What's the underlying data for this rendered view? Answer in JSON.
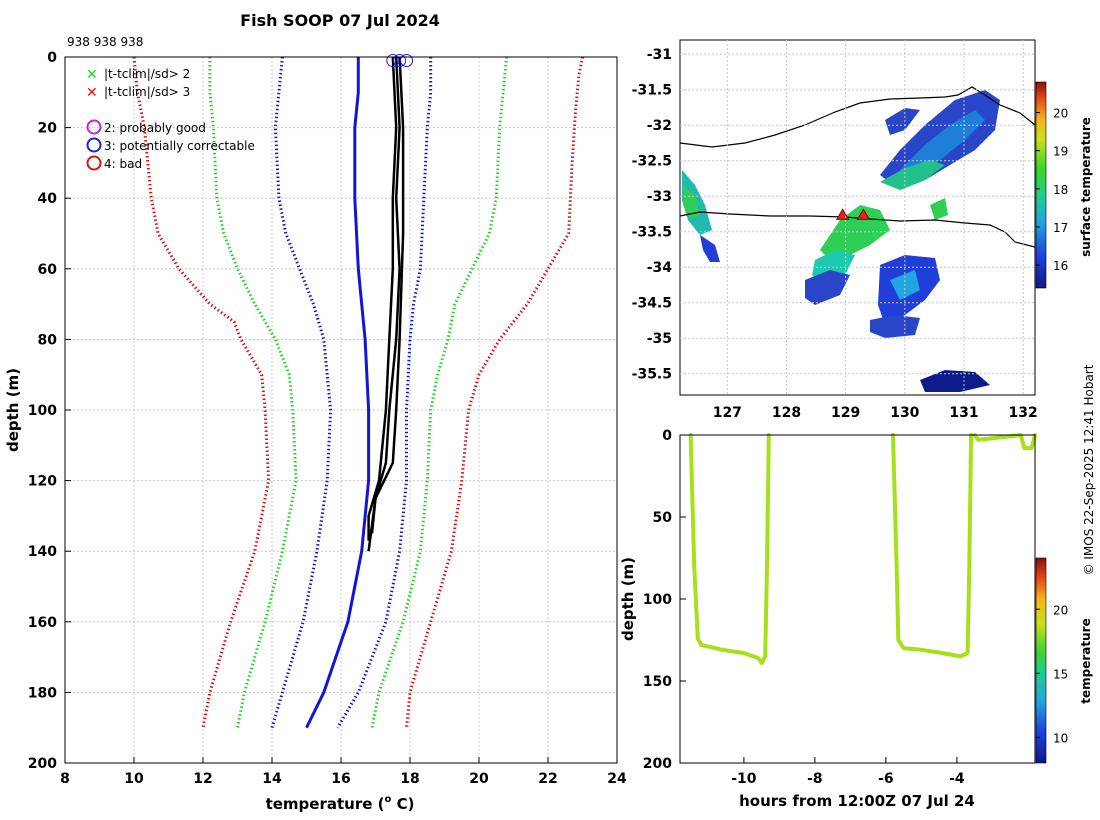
{
  "title": "Fish SOOP 07 Jul 2024",
  "profile_ids": "938 938 938",
  "credit": "© IMOS 22-Sep-2025 12:41 Hobart",
  "colors": {
    "sd2": "#1fd61f",
    "sd3": "#dd1111",
    "mean": "#1414d8",
    "obs": "#000000",
    "flag2": "#d020d0",
    "flag3": "#1f1fd8",
    "flag4": "#e01010"
  },
  "legend": {
    "sd2": "|t-tclim|/sd> 2",
    "sd3": "|t-tclim|/sd> 3",
    "flag2": "2: probably good",
    "flag3": "3: potentially correctable",
    "flag4": "4: bad"
  },
  "chart_data": [
    {
      "type": "line",
      "name": "profile",
      "xlabel": "temperature (o C)",
      "ylabel": "depth (m)",
      "xlim": [
        8,
        24
      ],
      "ylim": [
        0,
        200
      ],
      "y_reversed": true,
      "xticks": [
        8,
        10,
        12,
        14,
        16,
        18,
        20,
        22,
        24
      ],
      "yticks": [
        0,
        20,
        40,
        60,
        80,
        100,
        120,
        140,
        160,
        180,
        200
      ],
      "grid": true,
      "series": [
        {
          "name": "clim-3sd-low",
          "style": "dotted",
          "color": "sd3",
          "points": [
            [
              10.0,
              0
            ],
            [
              10.1,
              10
            ],
            [
              10.3,
              20
            ],
            [
              10.4,
              30
            ],
            [
              10.5,
              40
            ],
            [
              10.7,
              50
            ],
            [
              11.3,
              60
            ],
            [
              12.2,
              70
            ],
            [
              12.9,
              75
            ],
            [
              13.1,
              80
            ],
            [
              13.4,
              85
            ],
            [
              13.7,
              90
            ],
            [
              13.8,
              100
            ],
            [
              13.9,
              120
            ],
            [
              13.5,
              140
            ],
            [
              12.8,
              160
            ],
            [
              12.2,
              180
            ],
            [
              12.0,
              190
            ]
          ]
        },
        {
          "name": "clim-2sd-low",
          "style": "dotted",
          "color": "sd2",
          "points": [
            [
              12.2,
              0
            ],
            [
              12.2,
              10
            ],
            [
              12.3,
              20
            ],
            [
              12.4,
              40
            ],
            [
              12.6,
              50
            ],
            [
              13.0,
              60
            ],
            [
              13.5,
              70
            ],
            [
              14.1,
              80
            ],
            [
              14.5,
              90
            ],
            [
              14.6,
              100
            ],
            [
              14.7,
              120
            ],
            [
              14.3,
              140
            ],
            [
              13.8,
              160
            ],
            [
              13.2,
              180
            ],
            [
              13.0,
              190
            ]
          ]
        },
        {
          "name": "clim-mean-low",
          "style": "dotted",
          "color": "mean",
          "points": [
            [
              14.3,
              0
            ],
            [
              14.2,
              10
            ],
            [
              14.1,
              20
            ],
            [
              14.2,
              40
            ],
            [
              14.4,
              50
            ],
            [
              14.8,
              60
            ],
            [
              15.2,
              70
            ],
            [
              15.5,
              80
            ],
            [
              15.6,
              90
            ],
            [
              15.7,
              100
            ],
            [
              15.6,
              120
            ],
            [
              15.3,
              140
            ],
            [
              14.9,
              160
            ],
            [
              14.3,
              180
            ],
            [
              14.0,
              190
            ]
          ]
        },
        {
          "name": "clim-mean",
          "style": "solid",
          "color": "mean",
          "points": [
            [
              16.5,
              0
            ],
            [
              16.5,
              10
            ],
            [
              16.4,
              20
            ],
            [
              16.4,
              40
            ],
            [
              16.5,
              60
            ],
            [
              16.6,
              70
            ],
            [
              16.7,
              80
            ],
            [
              16.8,
              100
            ],
            [
              16.8,
              120
            ],
            [
              16.6,
              140
            ],
            [
              16.2,
              160
            ],
            [
              15.5,
              180
            ],
            [
              15.0,
              190
            ]
          ]
        },
        {
          "name": "clim-mean-high",
          "style": "dotted",
          "color": "mean",
          "points": [
            [
              18.6,
              0
            ],
            [
              18.6,
              10
            ],
            [
              18.5,
              20
            ],
            [
              18.4,
              40
            ],
            [
              18.3,
              60
            ],
            [
              18.1,
              70
            ],
            [
              18.0,
              80
            ],
            [
              17.9,
              100
            ],
            [
              17.9,
              120
            ],
            [
              17.7,
              140
            ],
            [
              17.3,
              160
            ],
            [
              16.5,
              180
            ],
            [
              15.9,
              190
            ]
          ]
        },
        {
          "name": "clim-2sd-high",
          "style": "dotted",
          "color": "sd2",
          "points": [
            [
              20.8,
              0
            ],
            [
              20.7,
              10
            ],
            [
              20.6,
              20
            ],
            [
              20.5,
              40
            ],
            [
              20.3,
              50
            ],
            [
              19.8,
              60
            ],
            [
              19.3,
              70
            ],
            [
              19.1,
              80
            ],
            [
              18.8,
              90
            ],
            [
              18.6,
              100
            ],
            [
              18.5,
              120
            ],
            [
              18.3,
              140
            ],
            [
              17.8,
              160
            ],
            [
              17.1,
              180
            ],
            [
              16.9,
              190
            ]
          ]
        },
        {
          "name": "clim-3sd-high",
          "style": "dotted",
          "color": "sd3",
          "points": [
            [
              23.0,
              0
            ],
            [
              22.9,
              5
            ],
            [
              22.8,
              15
            ],
            [
              22.7,
              30
            ],
            [
              22.6,
              50
            ],
            [
              22.0,
              60
            ],
            [
              21.4,
              70
            ],
            [
              20.6,
              80
            ],
            [
              20.0,
              90
            ],
            [
              19.7,
              100
            ],
            [
              19.5,
              120
            ],
            [
              19.2,
              140
            ],
            [
              18.6,
              160
            ],
            [
              18.0,
              180
            ],
            [
              17.9,
              190
            ]
          ]
        },
        {
          "name": "obs-1",
          "style": "solid",
          "color": "obs",
          "points": [
            [
              17.6,
              0
            ],
            [
              17.7,
              20
            ],
            [
              17.6,
              40
            ],
            [
              17.7,
              60
            ],
            [
              17.6,
              80
            ],
            [
              17.4,
              100
            ],
            [
              17.3,
              115
            ],
            [
              17.0,
              125
            ],
            [
              16.8,
              140
            ]
          ]
        },
        {
          "name": "obs-2",
          "style": "solid",
          "color": "obs",
          "points": [
            [
              17.5,
              0
            ],
            [
              17.6,
              20
            ],
            [
              17.5,
              40
            ],
            [
              17.5,
              60
            ],
            [
              17.4,
              80
            ],
            [
              17.3,
              100
            ],
            [
              17.1,
              120
            ],
            [
              16.8,
              130
            ],
            [
              16.8,
              137
            ]
          ]
        },
        {
          "name": "obs-3",
          "style": "solid",
          "color": "obs",
          "points": [
            [
              17.7,
              0
            ],
            [
              17.8,
              20
            ],
            [
              17.8,
              50
            ],
            [
              17.7,
              80
            ],
            [
              17.6,
              100
            ],
            [
              17.5,
              115
            ],
            [
              17.0,
              125
            ],
            [
              16.9,
              135
            ]
          ]
        }
      ],
      "flag_markers": [
        [
          17.5,
          1
        ],
        [
          17.7,
          1
        ],
        [
          17.9,
          1
        ]
      ]
    },
    {
      "type": "heatmap",
      "name": "surface temperature map",
      "colorbar_label": "surface temperature",
      "xlim": [
        126.2,
        132.2
      ],
      "ylim": [
        -35.8,
        -30.8
      ],
      "xticks": [
        127,
        128,
        129,
        130,
        131,
        132
      ],
      "yticks": [
        -31,
        -31.5,
        -32,
        -32.5,
        -33,
        -33.5,
        -34,
        -34.5,
        -35,
        -35.5
      ],
      "colorbar_range": [
        15.4,
        20.8
      ],
      "colorbar_ticks": [
        16,
        17,
        18,
        19,
        20
      ],
      "track_markers": [
        [
          128.95,
          -33.27
        ],
        [
          129.3,
          -33.27
        ]
      ]
    },
    {
      "type": "scatter",
      "name": "depth vs time",
      "xlabel": "hours from 12:00Z 07 Jul 24",
      "ylabel": "depth (m)",
      "xlim": [
        -11.8,
        -1.8
      ],
      "ylim": [
        0,
        200
      ],
      "y_reversed": true,
      "xticks": [
        -10,
        -8,
        -6,
        -4
      ],
      "yticks": [
        0,
        50,
        100,
        150,
        200
      ],
      "colorbar_label": "temperature",
      "colorbar_range": [
        8,
        24
      ],
      "colorbar_ticks": [
        10,
        15,
        20
      ],
      "series": [
        {
          "name": "cast-1",
          "temperature": 16.5,
          "points": [
            [
              -11.5,
              0
            ],
            [
              -11.45,
              40
            ],
            [
              -11.4,
              80
            ],
            [
              -11.3,
              124
            ],
            [
              -11.2,
              128
            ],
            [
              -10.6,
              131
            ],
            [
              -10.0,
              133
            ],
            [
              -9.6,
              136
            ],
            [
              -9.5,
              139
            ],
            [
              -9.4,
              135
            ],
            [
              -9.35,
              80
            ],
            [
              -9.3,
              0
            ]
          ]
        },
        {
          "name": "cast-2",
          "temperature": 16.5,
          "points": [
            [
              -5.8,
              0
            ],
            [
              -5.75,
              40
            ],
            [
              -5.7,
              80
            ],
            [
              -5.65,
              125
            ],
            [
              -5.5,
              130
            ],
            [
              -5.0,
              131
            ],
            [
              -4.4,
              133
            ],
            [
              -3.9,
              135
            ],
            [
              -3.7,
              133
            ],
            [
              -3.65,
              80
            ],
            [
              -3.6,
              0
            ]
          ]
        },
        {
          "name": "surface-blips",
          "temperature": 18.0,
          "points": [
            [
              -3.5,
              0
            ],
            [
              -3.4,
              3
            ],
            [
              -2.2,
              0
            ],
            [
              -2.1,
              8
            ],
            [
              -1.9,
              8
            ],
            [
              -1.8,
              0
            ]
          ]
        }
      ]
    }
  ]
}
